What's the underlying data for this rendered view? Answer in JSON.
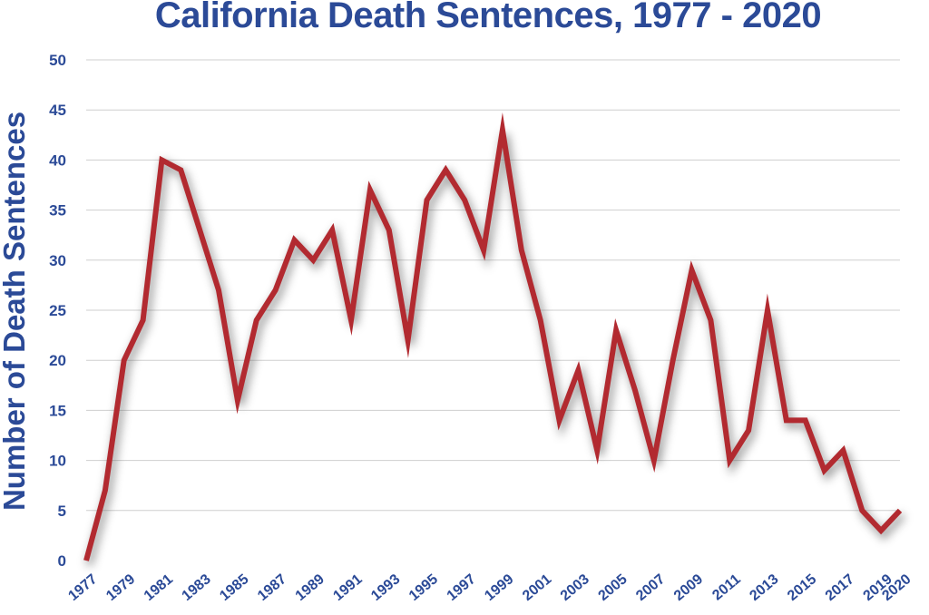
{
  "chart_data": {
    "type": "line",
    "title": "California Death Sentences, 1977 - 2020",
    "xlabel": "",
    "ylabel": "Number of Death Sentences",
    "x": [
      1977,
      1978,
      1979,
      1980,
      1981,
      1982,
      1983,
      1984,
      1985,
      1986,
      1987,
      1988,
      1989,
      1990,
      1991,
      1992,
      1993,
      1994,
      1995,
      1996,
      1997,
      1998,
      1999,
      2000,
      2001,
      2002,
      2003,
      2004,
      2005,
      2006,
      2007,
      2008,
      2009,
      2010,
      2011,
      2012,
      2013,
      2014,
      2015,
      2016,
      2017,
      2018,
      2019,
      2020
    ],
    "values": [
      0,
      7,
      20,
      24,
      40,
      39,
      33,
      27,
      16,
      24,
      27,
      32,
      30,
      33,
      24,
      37,
      33,
      22,
      36,
      39,
      36,
      31,
      43,
      31,
      24,
      14,
      19,
      11,
      23,
      17,
      10,
      20,
      29,
      24,
      10,
      13,
      25,
      14,
      14,
      9,
      11,
      5,
      3,
      5
    ],
    "xticks": [
      "1977",
      "1979",
      "1981",
      "1983",
      "1985",
      "1987",
      "1989",
      "1991",
      "1993",
      "1995",
      "1997",
      "1999",
      "2001",
      "2003",
      "2005",
      "2007",
      "2009",
      "2011",
      "2013",
      "2015",
      "2017",
      "2019",
      "2020"
    ],
    "yticks": [
      "0",
      "5",
      "10",
      "15",
      "20",
      "25",
      "30",
      "35",
      "40",
      "45",
      "50"
    ],
    "ylim": [
      0,
      50
    ],
    "grid": true,
    "line_color": "#b22a30",
    "text_color": "#2b4a97"
  }
}
